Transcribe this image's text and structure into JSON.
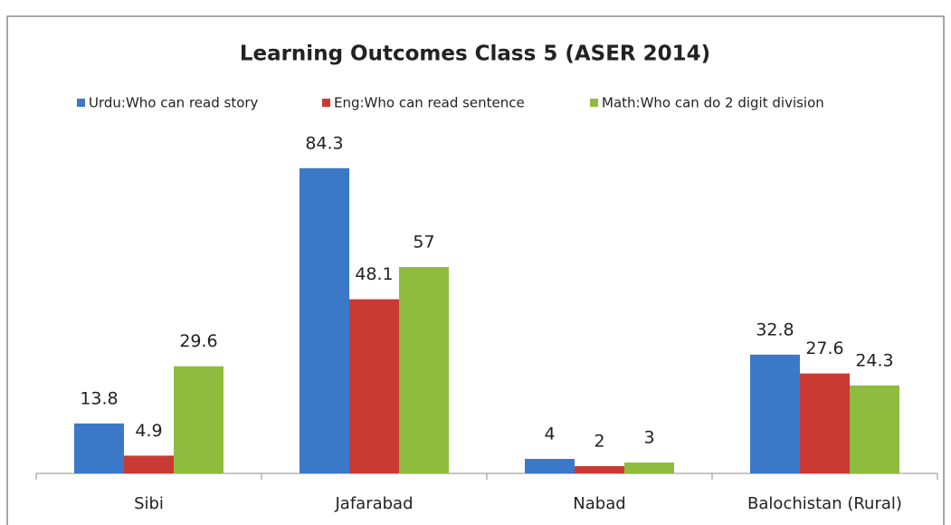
{
  "chart_data": {
    "type": "bar",
    "title": "Learning Outcomes Class 5 (ASER 2014)",
    "categories": [
      "Sibi",
      "Jafarabad",
      "Nabad",
      "Balochistan (Rural)"
    ],
    "series": [
      {
        "name": "Urdu:Who can read story",
        "color": "#3b78c8",
        "values": [
          13.8,
          84.3,
          4,
          32.8
        ]
      },
      {
        "name": "Eng:Who can read sentence",
        "color": "#c93a34",
        "values": [
          4.9,
          48.1,
          2,
          27.6
        ]
      },
      {
        "name": "Math:Who can do 2 digit division",
        "color": "#8fbc3f",
        "values": [
          29.6,
          57,
          3,
          24.3
        ]
      }
    ],
    "ylim": [
      0,
      100
    ],
    "grid": false,
    "legend": "top"
  }
}
